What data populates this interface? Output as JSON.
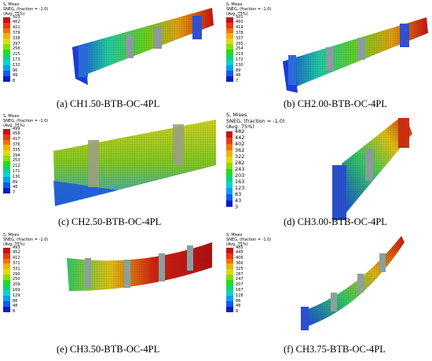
{
  "legend_header": {
    "line1": "S, Mises",
    "line2": "SNEG, (fraction = -1.0)",
    "line3": "(Avg: 75%)"
  },
  "contour_colors": [
    "#0a1cc8",
    "#0e5cf0",
    "#0aa0f0",
    "#10d2c8",
    "#10d27a",
    "#22dc20",
    "#8cdc10",
    "#dcdc10",
    "#f0b010",
    "#f07010",
    "#e83c10",
    "#c81010"
  ],
  "panels": [
    {
      "caption": "(a) CH1.50-BTB-OC-4PL",
      "legend_values": [
        "503",
        "462",
        "421",
        "379",
        "338",
        "297",
        "256",
        "215",
        "173",
        "132",
        "90",
        "49",
        "8"
      ]
    },
    {
      "caption": "(b) CH2.00-BTB-OC-4PL",
      "legend_values": [
        "501",
        "460",
        "419",
        "378",
        "337",
        "295",
        "254",
        "213",
        "172",
        "130",
        "89",
        "48",
        "7"
      ]
    },
    {
      "caption": "(c) CH2.50-BTB-OC-4PL",
      "legend_values": [
        "499",
        "458",
        "417",
        "376",
        "335",
        "294",
        "253",
        "212",
        "171",
        "130",
        "89",
        "48",
        "7"
      ]
    },
    {
      "caption": "(d) CH3.00-BTB-OC-4PL",
      "legend_values": [
        "482",
        "442",
        "402",
        "362",
        "322",
        "282",
        "243",
        "203",
        "163",
        "123",
        "83",
        "43",
        "3"
      ]
    },
    {
      "caption": "(e) CH3.50-BTB-OC-4PL",
      "legend_values": [
        "493",
        "452",
        "412",
        "371",
        "331",
        "290",
        "250",
        "209",
        "169",
        "129",
        "88",
        "48",
        "8"
      ]
    },
    {
      "caption": "(f) CH3.75-BTB-OC-4PL",
      "legend_values": [
        "485",
        "445",
        "406",
        "366",
        "325",
        "287",
        "247",
        "207",
        "167",
        "128",
        "88",
        "48",
        "8"
      ]
    }
  ]
}
